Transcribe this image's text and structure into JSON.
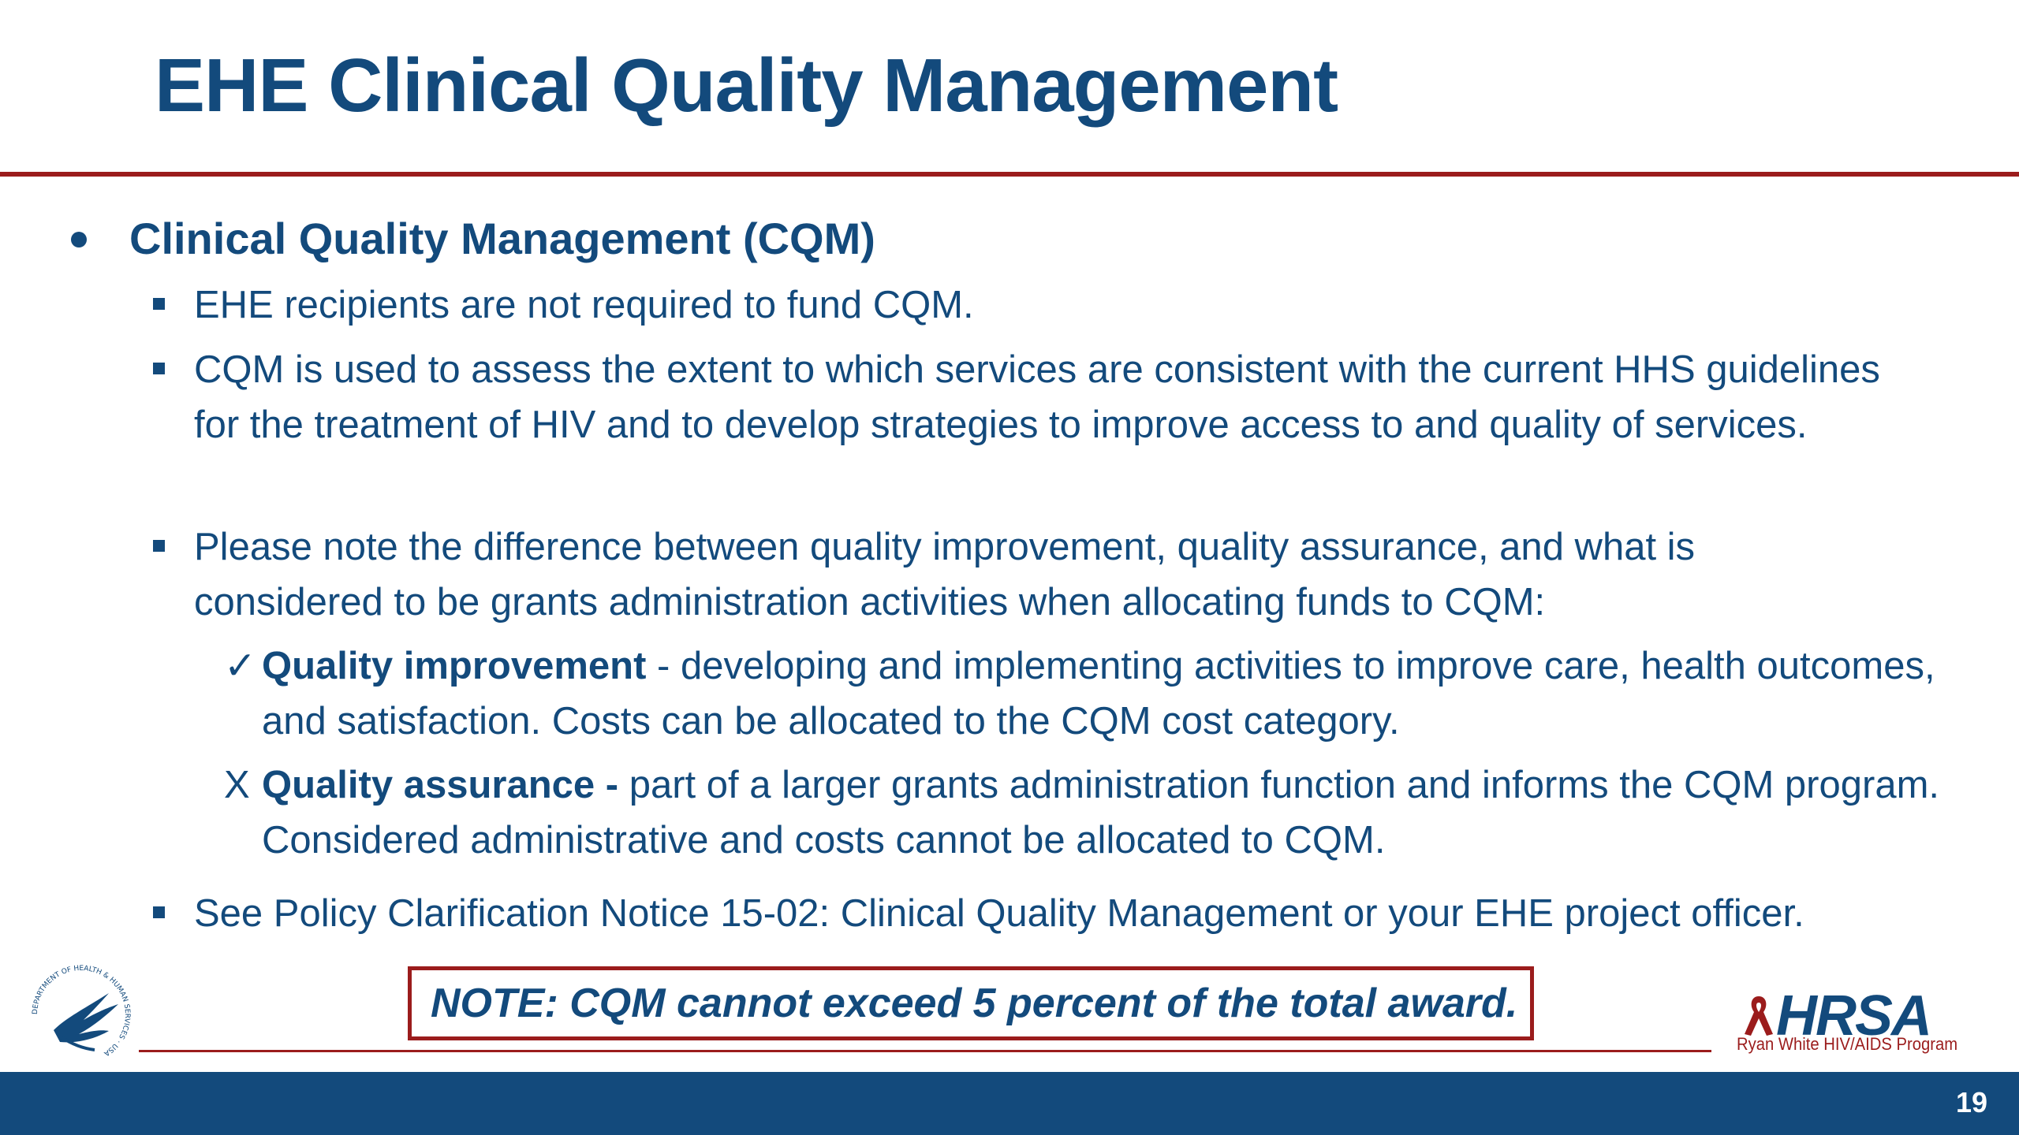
{
  "slide": {
    "title": "EHE Clinical Quality Management",
    "page_number": "19"
  },
  "content": {
    "heading": "Clinical Quality Management (CQM)",
    "bullets": [
      "EHE recipients are not required to fund CQM.",
      "CQM is used to assess the extent to which services are consistent with the current HHS guidelines for the treatment of HIV and to develop strategies to improve access to and quality of services.",
      "Please note the difference between quality improvement, quality assurance, and what is considered to be grants administration activities when allocating funds to CQM:",
      "See Policy Clarification Notice 15-02: Clinical Quality Management or your EHE project officer."
    ],
    "sub_items": [
      {
        "marker": "✓",
        "term": "Quality improvement",
        "text": " - developing and implementing activities to improve care, health outcomes, and satisfaction. Costs can be allocated to the CQM cost category."
      },
      {
        "marker": "X",
        "term": "Quality assurance -",
        "text": " part of a larger grants administration function and informs the CQM program. Considered administrative and costs cannot be allocated to CQM."
      }
    ]
  },
  "note": "NOTE: CQM cannot exceed 5 percent of the total award.",
  "logos": {
    "hhs_seal_text": "DEPARTMENT OF HEALTH & HUMAN SERVICES · USA",
    "hrsa_name": "HRSA",
    "hrsa_program": "Ryan White HIV/AIDS Program"
  },
  "colors": {
    "primary_blue": "#134a7c",
    "accent_red": "#9b1c1c"
  }
}
